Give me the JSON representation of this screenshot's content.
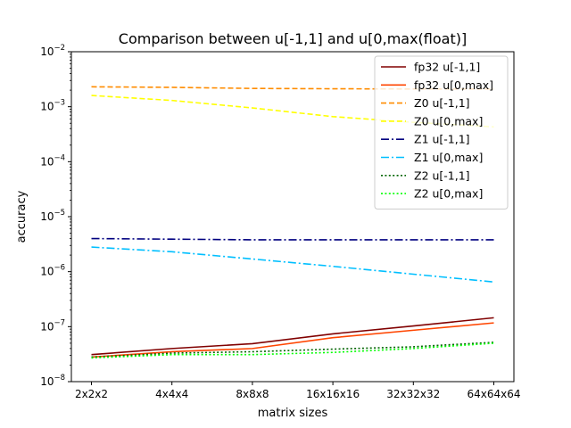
{
  "chart_data": {
    "type": "line",
    "title": "Comparison between u[-1,1] and u[0,max(float)]",
    "xlabel": "matrix sizes",
    "ylabel": "accuracy",
    "categories": [
      "2x2x2",
      "4x4x4",
      "8x8x8",
      "16x16x16",
      "32x32x32",
      "64x64x64"
    ],
    "yscale": "log",
    "ylim": [
      1e-08,
      0.01
    ],
    "yticks": [
      {
        "base": "10",
        "exp": "−8"
      },
      {
        "base": "10",
        "exp": "−7"
      },
      {
        "base": "10",
        "exp": "−6"
      },
      {
        "base": "10",
        "exp": "−5"
      },
      {
        "base": "10",
        "exp": "−4"
      },
      {
        "base": "10",
        "exp": "−3"
      },
      {
        "base": "10",
        "exp": "−2"
      }
    ],
    "grid": false,
    "legend_position": "top-right",
    "series": [
      {
        "name": "fp32 u[-1,1]",
        "color": "#800000",
        "style": "solid",
        "values": [
          3.1e-08,
          4e-08,
          4.9e-08,
          7.4e-08,
          1.03e-07,
          1.45e-07
        ]
      },
      {
        "name": "fp32 u[0,max]",
        "color": "#ff4500",
        "style": "solid",
        "values": [
          2.8e-08,
          3.5e-08,
          4e-08,
          6.3e-08,
          8.6e-08,
          1.17e-07
        ]
      },
      {
        "name": "Z0 u[-1,1]",
        "color": "#ff8c00",
        "style": "dashed",
        "values": [
          0.0023,
          0.00225,
          0.00215,
          0.00212,
          0.0021,
          0.0021
        ]
      },
      {
        "name": "Z0 u[0,max]",
        "color": "#ffff00",
        "style": "dashed",
        "values": [
          0.0016,
          0.0013,
          0.00095,
          0.00066,
          0.00052,
          0.00043
        ]
      },
      {
        "name": "Z1 u[-1,1]",
        "color": "#000080",
        "style": "dashdot",
        "values": [
          4e-06,
          3.9e-06,
          3.8e-06,
          3.8e-06,
          3.8e-06,
          3.8e-06
        ]
      },
      {
        "name": "Z1 u[0,max]",
        "color": "#00bfff",
        "style": "dashdot",
        "values": [
          2.8e-06,
          2.3e-06,
          1.7e-06,
          1.25e-06,
          9e-07,
          6.5e-07
        ]
      },
      {
        "name": "Z2 u[-1,1]",
        "color": "#006400",
        "style": "dotted",
        "values": [
          2.8e-08,
          3.3e-08,
          3.5e-08,
          3.9e-08,
          4.3e-08,
          5.2e-08
        ]
      },
      {
        "name": "Z2 u[0,max]",
        "color": "#00ff00",
        "style": "dotted",
        "values": [
          2.7e-08,
          3.1e-08,
          3.1e-08,
          3.4e-08,
          4e-08,
          5e-08
        ]
      }
    ]
  }
}
